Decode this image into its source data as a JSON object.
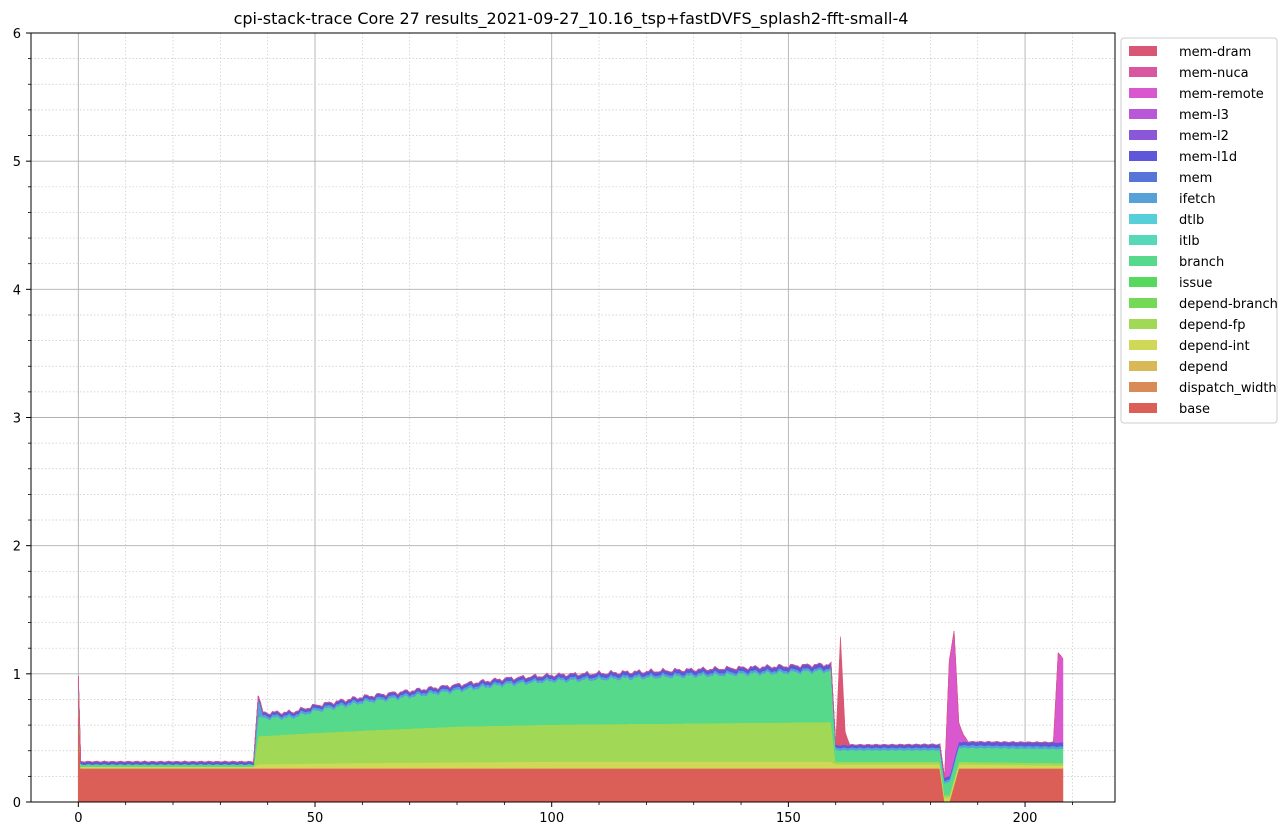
{
  "chart_data": {
    "type": "area",
    "title": "cpi-stack-trace Core 27 results_2021-09-27_10.16_tsp+fastDVFS_splash2-fft-small-4",
    "xlabel": "",
    "ylabel": "",
    "xlim": [
      -10,
      219
    ],
    "ylim": [
      0,
      6
    ],
    "x_ticks": [
      0,
      50,
      100,
      150,
      200
    ],
    "y_ticks": [
      0,
      1,
      2,
      3,
      4,
      5,
      6
    ],
    "grid": true,
    "legend_position": "upper-right-outside",
    "legend": [
      "mem-dram",
      "mem-nuca",
      "mem-remote",
      "mem-l3",
      "mem-l2",
      "mem-l1d",
      "mem",
      "ifetch",
      "dtlb",
      "itlb",
      "branch",
      "issue",
      "depend-branch",
      "depend-fp",
      "depend-int",
      "depend",
      "dispatch_width",
      "base"
    ],
    "series": [
      {
        "name": "base",
        "color": "#db5f57",
        "points": [
          [
            0,
            0.9
          ],
          [
            0.5,
            0.26
          ],
          [
            37,
            0.26
          ],
          [
            38,
            0.26
          ],
          [
            160,
            0.26
          ],
          [
            161,
            0.26
          ],
          [
            182,
            0.26
          ],
          [
            183,
            0
          ],
          [
            184,
            0
          ],
          [
            186,
            0.26
          ],
          [
            208,
            0.26
          ]
        ]
      },
      {
        "name": "dispatch_width",
        "color": "#d98b57",
        "points": [
          [
            0,
            0
          ],
          [
            0.5,
            0.005
          ],
          [
            208,
            0.005
          ]
        ]
      },
      {
        "name": "depend",
        "color": "#d9b957",
        "points": [
          [
            0,
            0
          ],
          [
            208,
            0
          ]
        ]
      },
      {
        "name": "depend-int",
        "color": "#cfd957",
        "points": [
          [
            0,
            0
          ],
          [
            0.5,
            0.01
          ],
          [
            37,
            0.01
          ],
          [
            38,
            0.03
          ],
          [
            60,
            0.04
          ],
          [
            100,
            0.05
          ],
          [
            159,
            0.05
          ],
          [
            160,
            0.03
          ],
          [
            182,
            0.03
          ],
          [
            186,
            0.03
          ],
          [
            208,
            0.02
          ]
        ]
      },
      {
        "name": "depend-fp",
        "color": "#a1d957",
        "points": [
          [
            0,
            0
          ],
          [
            37,
            0
          ],
          [
            38,
            0.22
          ],
          [
            50,
            0.24
          ],
          [
            80,
            0.28
          ],
          [
            100,
            0.29
          ],
          [
            130,
            0.3
          ],
          [
            159,
            0.31
          ],
          [
            160,
            0.02
          ],
          [
            208,
            0.02
          ]
        ]
      },
      {
        "name": "depend-branch",
        "color": "#74d957",
        "points": [
          [
            0,
            0
          ],
          [
            208,
            0
          ]
        ]
      },
      {
        "name": "issue",
        "color": "#57d95f",
        "points": [
          [
            0,
            0
          ],
          [
            208,
            0
          ]
        ]
      },
      {
        "name": "branch",
        "color": "#57d98b",
        "points": [
          [
            0,
            0.06
          ],
          [
            0.5,
            0.02
          ],
          [
            37,
            0.02
          ],
          [
            38,
            0.14
          ],
          [
            45,
            0.13
          ],
          [
            50,
            0.17
          ],
          [
            60,
            0.22
          ],
          [
            70,
            0.25
          ],
          [
            80,
            0.28
          ],
          [
            90,
            0.32
          ],
          [
            100,
            0.34
          ],
          [
            110,
            0.35
          ],
          [
            120,
            0.36
          ],
          [
            130,
            0.37
          ],
          [
            140,
            0.38
          ],
          [
            150,
            0.39
          ],
          [
            159,
            0.4
          ],
          [
            160,
            0.09
          ],
          [
            182,
            0.09
          ],
          [
            186,
            0.11
          ],
          [
            208,
            0.11
          ]
        ]
      },
      {
        "name": "itlb",
        "color": "#57d9b9",
        "points": [
          [
            0,
            0
          ],
          [
            208,
            0
          ]
        ]
      },
      {
        "name": "dtlb",
        "color": "#57cfd9",
        "points": [
          [
            0,
            0
          ],
          [
            208,
            0
          ]
        ]
      },
      {
        "name": "ifetch",
        "color": "#57a1d9",
        "points": [
          [
            0,
            0
          ],
          [
            37,
            0
          ],
          [
            38,
            0.15
          ],
          [
            39,
            0.02
          ],
          [
            208,
            0.02
          ]
        ]
      },
      {
        "name": "mem",
        "color": "#5774d9",
        "points": [
          [
            0,
            0
          ],
          [
            208,
            0
          ]
        ]
      },
      {
        "name": "mem-l1d",
        "color": "#5f57d9",
        "points": [
          [
            0,
            0.02
          ],
          [
            0.5,
            0.02
          ],
          [
            37,
            0.02
          ],
          [
            38,
            0.02
          ],
          [
            159,
            0.03
          ],
          [
            160,
            0.02
          ],
          [
            208,
            0.03
          ]
        ]
      },
      {
        "name": "mem-l2",
        "color": "#8b57d9",
        "points": [
          [
            0,
            0
          ],
          [
            208,
            0
          ]
        ]
      },
      {
        "name": "mem-l3",
        "color": "#b957d9",
        "points": [
          [
            0,
            0
          ],
          [
            208,
            0
          ]
        ]
      },
      {
        "name": "mem-remote",
        "color": "#d957cf",
        "points": [
          [
            0,
            0
          ],
          [
            183,
            0
          ],
          [
            184,
            0.9
          ],
          [
            185,
            1.0
          ],
          [
            186,
            0.15
          ],
          [
            187,
            0.05
          ],
          [
            188,
            0
          ],
          [
            206,
            0
          ],
          [
            207,
            0.7
          ],
          [
            208,
            0.65
          ]
        ]
      },
      {
        "name": "mem-nuca",
        "color": "#d957a1",
        "points": [
          [
            0,
            0
          ],
          [
            208,
            0
          ]
        ]
      },
      {
        "name": "mem-dram",
        "color": "#d95774",
        "points": [
          [
            0,
            0
          ],
          [
            160,
            0
          ],
          [
            161,
            0.85
          ],
          [
            162,
            0.1
          ],
          [
            163,
            0
          ],
          [
            208,
            0
          ]
        ]
      }
    ]
  }
}
